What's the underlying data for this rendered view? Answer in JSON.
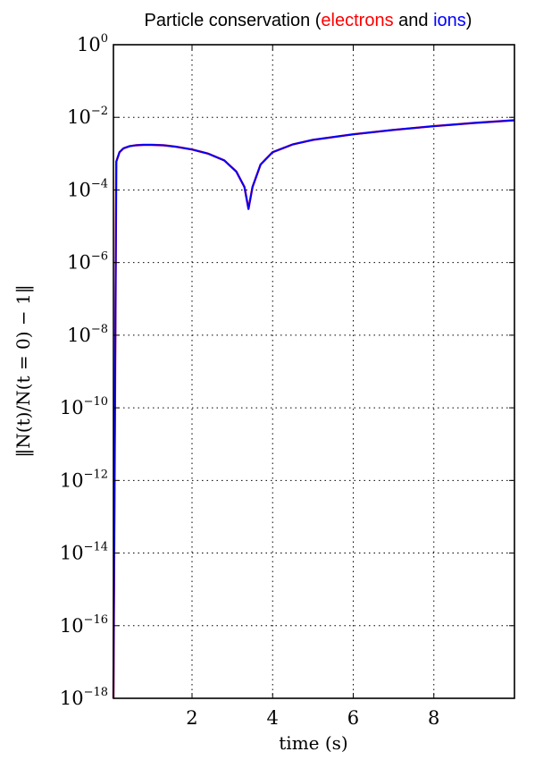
{
  "chart_data": {
    "type": "line",
    "title": {
      "prefix": "Particle conservation (",
      "electrons": "electrons",
      "middle": " and ",
      "ions": "ions",
      "suffix": ")"
    },
    "title_colors": {
      "text": "#000000",
      "electrons": "#ff0000",
      "ions": "#0000ff"
    },
    "xlabel": "time (s)",
    "ylabel": "‖N(t)/N(t = 0) − 1‖",
    "xlim": [
      0.05,
      10.0
    ],
    "ylim": [
      1e-18,
      1
    ],
    "yscale": "log",
    "grid": true,
    "x_ticks": [
      {
        "value": 2,
        "label": "2"
      },
      {
        "value": 4,
        "label": "4"
      },
      {
        "value": 6,
        "label": "6"
      },
      {
        "value": 8,
        "label": "8"
      }
    ],
    "y_ticks": [
      {
        "value": 0,
        "base": "10",
        "exp": "0"
      },
      {
        "value": -2,
        "base": "10",
        "exp": "−2"
      },
      {
        "value": -4,
        "base": "10",
        "exp": "−4"
      },
      {
        "value": -6,
        "base": "10",
        "exp": "−6"
      },
      {
        "value": -8,
        "base": "10",
        "exp": "−8"
      },
      {
        "value": -10,
        "base": "10",
        "exp": "−10"
      },
      {
        "value": -12,
        "base": "10",
        "exp": "−12"
      },
      {
        "value": -14,
        "base": "10",
        "exp": "−14"
      },
      {
        "value": -16,
        "base": "10",
        "exp": "−16"
      },
      {
        "value": -18,
        "base": "10",
        "exp": "−18"
      }
    ],
    "series": [
      {
        "color": "#ff0000",
        "x": [
          0.05,
          0.12,
          0.2,
          0.3,
          0.45,
          0.6,
          0.8,
          1.0,
          1.3,
          1.6,
          2.0,
          2.4,
          2.8,
          3.1,
          3.3,
          3.4,
          3.5,
          3.7,
          4.0,
          4.5,
          5.0,
          6.0,
          7.0,
          8.0,
          9.0,
          10.0
        ],
        "y": [
          1e-18,
          0.0006,
          0.0011,
          0.0014,
          0.0016,
          0.0017,
          0.00175,
          0.00175,
          0.0017,
          0.00155,
          0.0013,
          0.001,
          0.00065,
          0.00032,
          0.00012,
          3e-05,
          0.00012,
          0.0005,
          0.0011,
          0.0018,
          0.0024,
          0.0034,
          0.0045,
          0.0057,
          0.007,
          0.0083
        ]
      },
      {
        "color": "#0000ff",
        "x": [
          0.05,
          0.12,
          0.2,
          0.3,
          0.45,
          0.6,
          0.8,
          1.0,
          1.3,
          1.6,
          2.0,
          2.4,
          2.8,
          3.1,
          3.3,
          3.4,
          3.5,
          3.7,
          4.0,
          4.5,
          5.0,
          6.0,
          7.0,
          8.0,
          9.0,
          10.0
        ],
        "y": [
          1e-18,
          0.0006,
          0.0011,
          0.0014,
          0.0016,
          0.0017,
          0.00175,
          0.00175,
          0.0017,
          0.00155,
          0.0013,
          0.001,
          0.00065,
          0.00032,
          0.00012,
          3e-05,
          0.00012,
          0.0005,
          0.0011,
          0.0018,
          0.0024,
          0.0034,
          0.0045,
          0.0057,
          0.007,
          0.0083
        ]
      }
    ]
  }
}
